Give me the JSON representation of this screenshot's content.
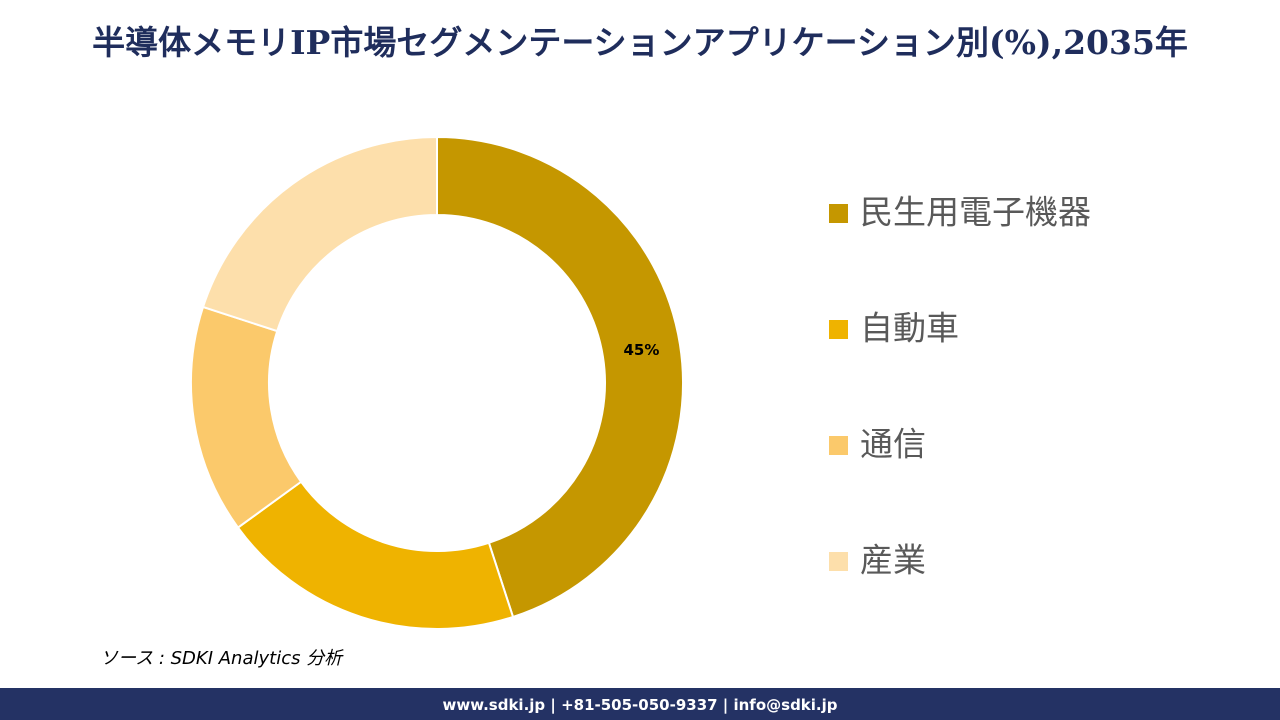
{
  "chart_data": {
    "type": "donut",
    "title": "半導体メモリIP市場セグメンテーションアプリケーション別(%),2035年",
    "categories": [
      "民生用電子機器",
      "自動車",
      "通信",
      "産業"
    ],
    "values": [
      45,
      20,
      15,
      20
    ],
    "value_labels": [
      "45%",
      null,
      null,
      null
    ],
    "colors": [
      "#c59700",
      "#efb300",
      "#fbc96b",
      "#fddfab"
    ],
    "legend": "right"
  },
  "source": "ソース : SDKI Analytics 分析",
  "footer": "www.sdki.jp | +81-505-050-9337 | info@sdki.jp"
}
